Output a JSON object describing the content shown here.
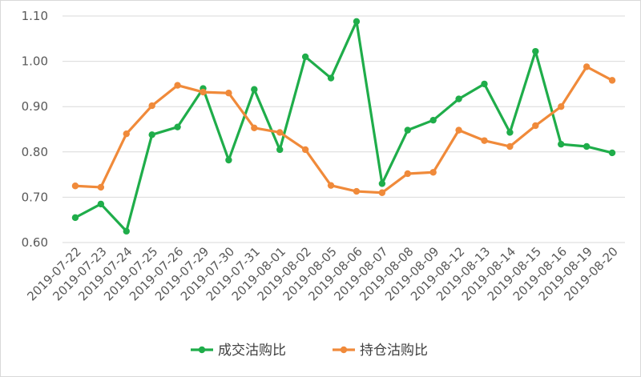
{
  "chart_data": {
    "type": "line",
    "title": "",
    "xlabel": "",
    "ylabel": "",
    "ylim": [
      0.6,
      1.1
    ],
    "y_ticks": [
      "0.60",
      "0.70",
      "0.80",
      "0.90",
      "1.00",
      "1.10"
    ],
    "grid": "horizontal",
    "legend_position": "bottom",
    "categories": [
      "2019-07-22",
      "2019-07-23",
      "2019-07-24",
      "2019-07-25",
      "2019-07-26",
      "2019-07-29",
      "2019-07-30",
      "2019-07-31",
      "2019-08-01",
      "2019-08-02",
      "2019-08-05",
      "2019-08-06",
      "2019-08-07",
      "2019-08-08",
      "2019-08-09",
      "2019-08-12",
      "2019-08-13",
      "2019-08-14",
      "2019-08-15",
      "2019-08-16",
      "2019-08-19",
      "2019-08-20"
    ],
    "series": [
      {
        "name": "成交沽购比",
        "color": "#1fad4a",
        "values": [
          0.655,
          0.685,
          0.625,
          0.838,
          0.855,
          0.94,
          0.782,
          0.938,
          0.805,
          1.01,
          0.963,
          1.088,
          0.73,
          0.848,
          0.87,
          0.917,
          0.95,
          0.843,
          1.022,
          0.817,
          0.812,
          0.798
        ]
      },
      {
        "name": "持仓沽购比",
        "color": "#f08a3a",
        "values": [
          0.725,
          0.722,
          0.84,
          0.902,
          0.947,
          0.932,
          0.93,
          0.853,
          0.843,
          0.805,
          0.726,
          0.713,
          0.71,
          0.752,
          0.755,
          0.848,
          0.825,
          0.812,
          0.858,
          0.9,
          0.988,
          0.958
        ]
      }
    ]
  }
}
